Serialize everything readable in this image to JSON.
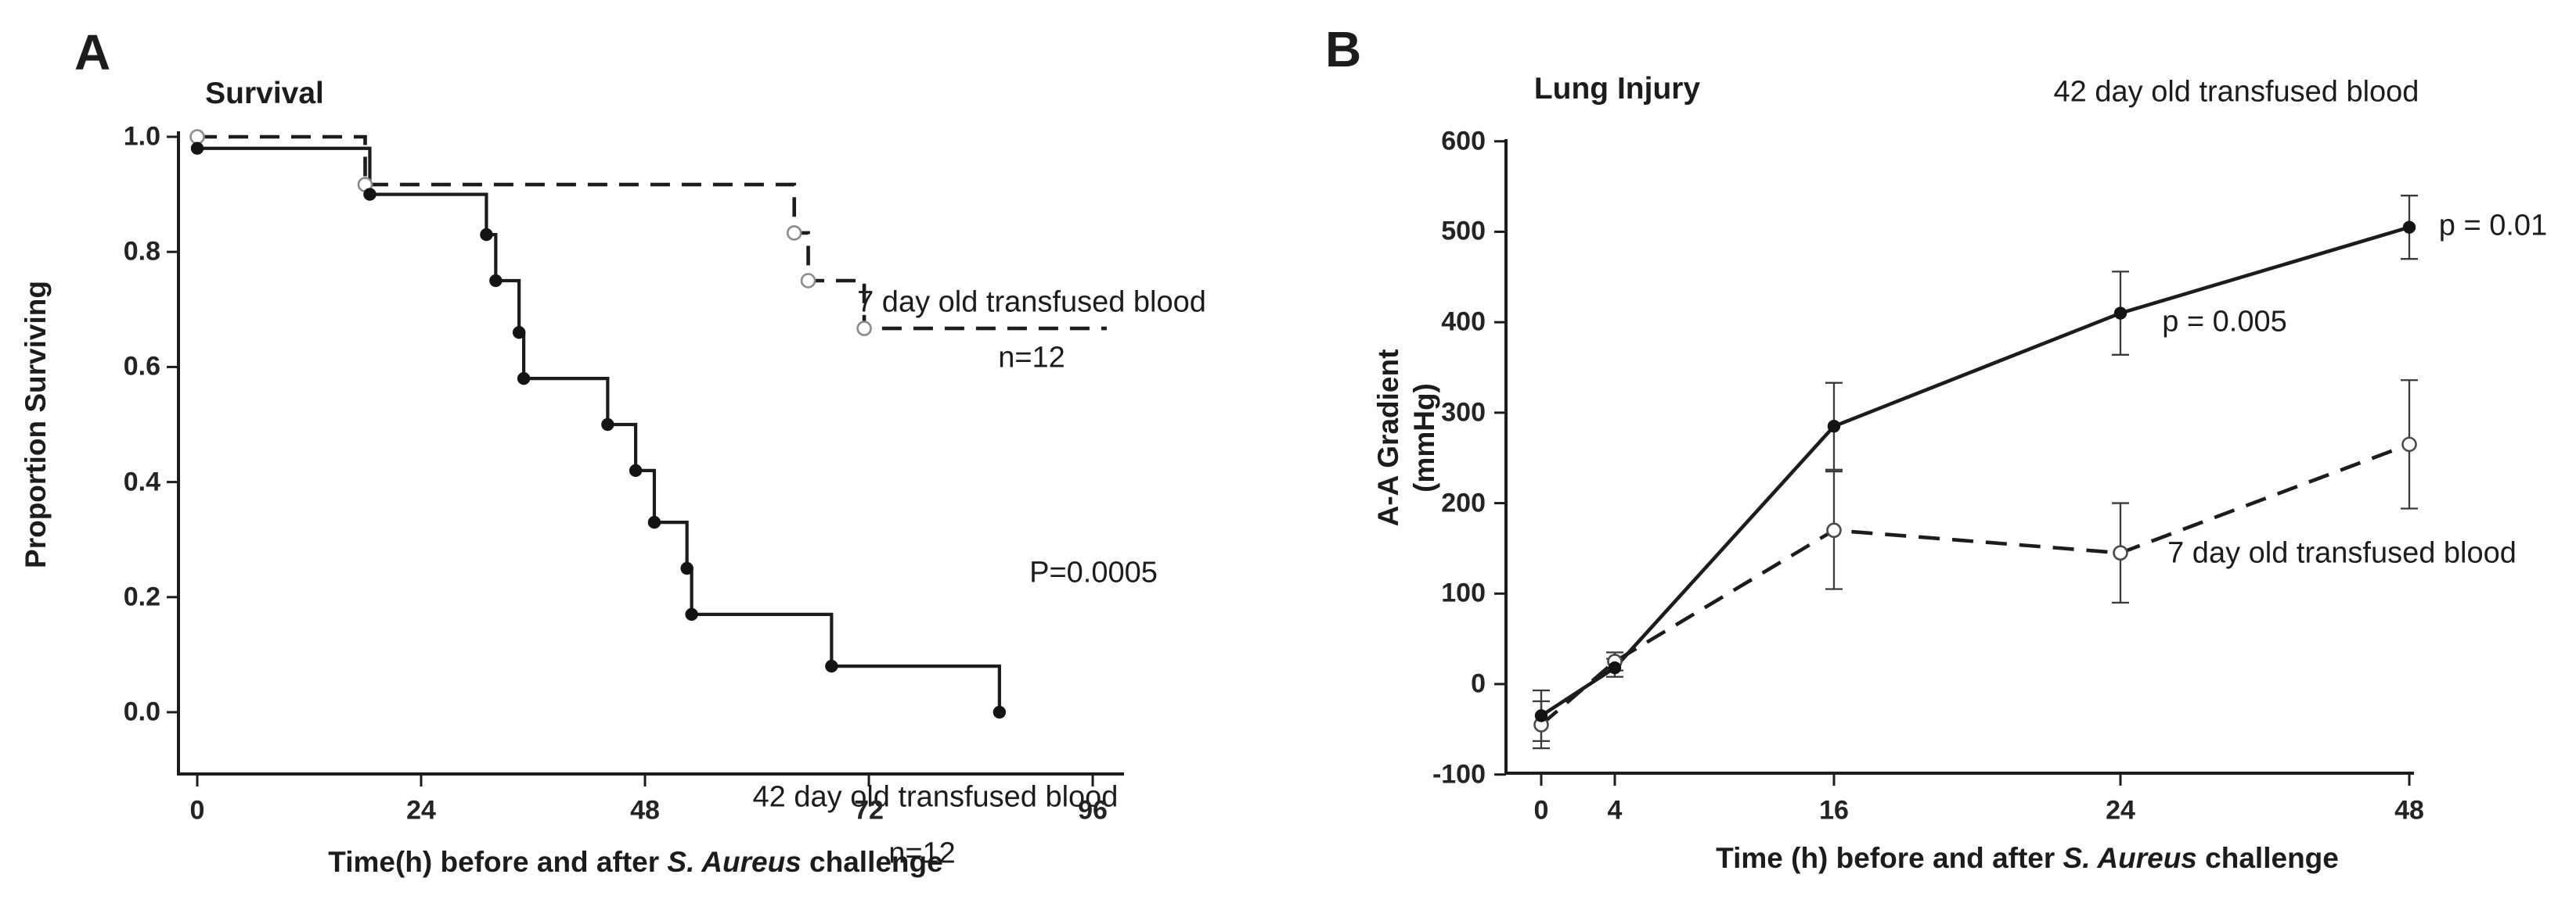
{
  "page": {
    "background": "#ffffff",
    "ink": "#1c1c1c",
    "error_bar_color": "#3a3a3a"
  },
  "chart_data": [
    {
      "id": "A",
      "panel_label": "A",
      "type": "line",
      "subtype": "kaplan-meier-step",
      "title": "Survival",
      "ylabel": "Proportion Surviving",
      "xlabel_prefix": "Time(h) before and after ",
      "xlabel_italic": "S. Aureus",
      "xlabel_suffix": " challenge",
      "xlim": [
        0,
        96
      ],
      "ylim": [
        0.0,
        1.0
      ],
      "xticks": [
        "0",
        "24",
        "48",
        "72",
        "96"
      ],
      "xtick_values": [
        0,
        24,
        48,
        72,
        96
      ],
      "yticks": [
        "1.0",
        "0.8",
        "0.6",
        "0.4",
        "0.2",
        "0.0"
      ],
      "ytick_values": [
        1.0,
        0.8,
        0.6,
        0.4,
        0.2,
        0.0
      ],
      "grid": false,
      "pvalue": "P=0.0005",
      "series": [
        {
          "name": "7 day old transfused blood",
          "label_line1": "7 day old transfused blood",
          "label_line2": "n=12",
          "n": 12,
          "line_style": "dashed",
          "marker": "open-circle",
          "step_times": [
            0,
            18,
            64,
            65.5,
            71.5
          ],
          "step_values": [
            1.0,
            0.917,
            0.833,
            0.75,
            0.667
          ],
          "end_time": 97.5
        },
        {
          "name": "42 day old transfused blood",
          "label_line1": "42 day old transfused blood",
          "label_line2": "n=12",
          "n": 12,
          "line_style": "solid",
          "marker": "filled-circle",
          "step_times": [
            0,
            18.5,
            31,
            32,
            34.5,
            35,
            44,
            47,
            49,
            52.5,
            53,
            68,
            86
          ],
          "step_values": [
            0.98,
            0.9,
            0.83,
            0.75,
            0.66,
            0.58,
            0.5,
            0.42,
            0.33,
            0.25,
            0.17,
            0.08,
            0.0
          ],
          "end_time": 86
        }
      ]
    },
    {
      "id": "B",
      "panel_label": "B",
      "type": "line",
      "subtype": "line-with-error-bars",
      "title": "Lung Injury",
      "ylabel_line1": "A-A Gradient",
      "ylabel_line2": "(mmHg)",
      "xlabel_prefix": "Time (h) before and after ",
      "xlabel_italic": "S. Aureus",
      "xlabel_suffix": " challenge",
      "ylim": [
        -100,
        600
      ],
      "yticks": [
        "600",
        "500",
        "400",
        "300",
        "200",
        "100",
        "0",
        "-100"
      ],
      "ytick_values": [
        600,
        500,
        400,
        300,
        200,
        100,
        0,
        -100
      ],
      "xticks": [
        "0",
        "4",
        "16",
        "24",
        "48"
      ],
      "x": [
        0,
        4,
        16,
        24,
        48
      ],
      "grid": false,
      "series": [
        {
          "name": "42 day old transfused blood",
          "label": "42 day old transfused blood",
          "line_style": "solid",
          "marker": "filled-circle",
          "values": [
            -35,
            18,
            285,
            410,
            505
          ],
          "errors": [
            28,
            10,
            48,
            46,
            35
          ],
          "p_value_24h": "p = 0.005",
          "p_value_48h": "p = 0.01"
        },
        {
          "name": "7 day old transfused blood",
          "label": "7 day old transfused blood",
          "line_style": "dashed",
          "marker": "open-circle",
          "values": [
            -45,
            25,
            170,
            145,
            265
          ],
          "errors": [
            26,
            10,
            65,
            55,
            71
          ]
        }
      ]
    }
  ]
}
